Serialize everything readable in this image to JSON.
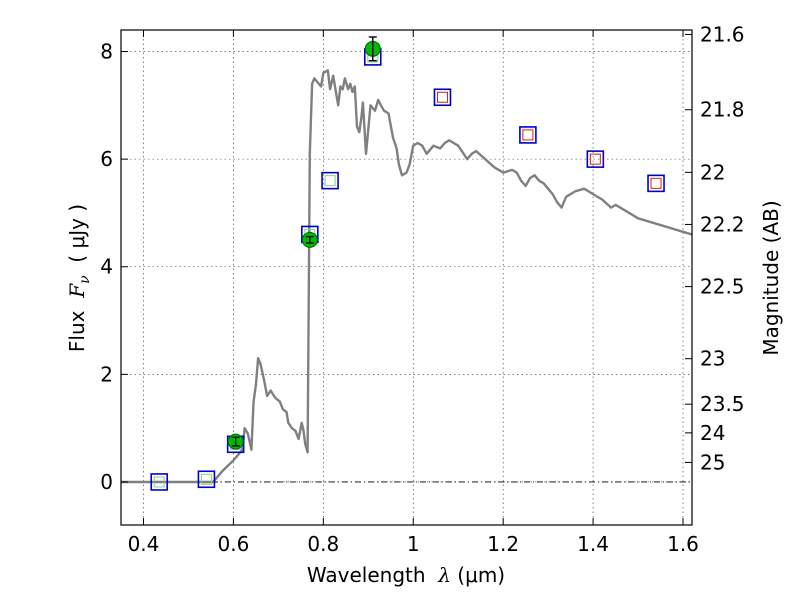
{
  "chart_data": {
    "type": "scatter",
    "xlabel": {
      "pre": "Wavelength  ",
      "sym": "λ",
      "unit": " (μm)"
    },
    "ylabel": {
      "pre": "Flux  ",
      "sym": "F",
      "sub": "ν",
      "unit": "  ( μJy )"
    },
    "y2label": "Magnitude (AB)",
    "xlim": [
      0.35,
      1.62
    ],
    "ylim": [
      -0.8,
      8.4
    ],
    "grid": true,
    "x_ticks": [
      {
        "value": 0.4,
        "label": "0.4"
      },
      {
        "value": 0.6,
        "label": "0.6"
      },
      {
        "value": 0.8,
        "label": "0.8"
      },
      {
        "value": 1.0,
        "label": "1"
      },
      {
        "value": 1.2,
        "label": "1.2"
      },
      {
        "value": 1.4,
        "label": "1.4"
      },
      {
        "value": 1.6,
        "label": "1.6"
      }
    ],
    "y_ticks": [
      {
        "value": 0,
        "label": "0"
      },
      {
        "value": 2,
        "label": "2"
      },
      {
        "value": 4,
        "label": "4"
      },
      {
        "value": 6,
        "label": "6"
      },
      {
        "value": 8,
        "label": "8"
      }
    ],
    "y2_ticks": [
      {
        "label": "21.6"
      },
      {
        "label": "21.8"
      },
      {
        "label": "22"
      },
      {
        "label": "22.2"
      },
      {
        "label": "22.5"
      },
      {
        "label": "23"
      },
      {
        "label": "23.5"
      },
      {
        "label": "24"
      },
      {
        "label": "25"
      }
    ],
    "series": [
      {
        "name": "model-spectrum",
        "kind": "line",
        "color": "#808080",
        "x": [
          0.35,
          0.555,
          0.575,
          0.6,
          0.61,
          0.62,
          0.625,
          0.632,
          0.64,
          0.645,
          0.65,
          0.655,
          0.66,
          0.668,
          0.675,
          0.683,
          0.69,
          0.695,
          0.703,
          0.71,
          0.718,
          0.722,
          0.73,
          0.738,
          0.745,
          0.752,
          0.756,
          0.76,
          0.765,
          0.77,
          0.775,
          0.78,
          0.785,
          0.79,
          0.795,
          0.8,
          0.81,
          0.815,
          0.822,
          0.828,
          0.833,
          0.838,
          0.843,
          0.848,
          0.855,
          0.86,
          0.865,
          0.87,
          0.875,
          0.88,
          0.885,
          0.888,
          0.895,
          0.905,
          0.915,
          0.922,
          0.928,
          0.935,
          0.945,
          0.955,
          0.963,
          0.968,
          0.975,
          0.985,
          0.992,
          1.0,
          1.01,
          1.02,
          1.03,
          1.045,
          1.06,
          1.07,
          1.08,
          1.09,
          1.1,
          1.12,
          1.13,
          1.14,
          1.16,
          1.18,
          1.2,
          1.22,
          1.23,
          1.24,
          1.25,
          1.26,
          1.27,
          1.28,
          1.29,
          1.3,
          1.31,
          1.32,
          1.33,
          1.34,
          1.36,
          1.38,
          1.39,
          1.4,
          1.42,
          1.44,
          1.45,
          1.47,
          1.49,
          1.5,
          1.52,
          1.54,
          1.56,
          1.58,
          1.6,
          1.62
        ],
        "y": [
          0.0,
          0.0,
          0.2,
          0.4,
          0.5,
          0.6,
          1.0,
          0.9,
          0.6,
          1.5,
          1.8,
          2.3,
          2.2,
          1.9,
          1.6,
          1.7,
          1.6,
          1.55,
          1.5,
          1.35,
          1.3,
          1.1,
          1.0,
          0.95,
          0.8,
          1.1,
          0.95,
          0.7,
          0.55,
          6.1,
          7.4,
          7.5,
          7.45,
          7.4,
          7.35,
          7.6,
          7.65,
          7.3,
          7.55,
          7.25,
          7.0,
          7.35,
          7.3,
          7.5,
          7.3,
          7.4,
          7.25,
          7.35,
          6.6,
          6.5,
          6.8,
          7.05,
          6.1,
          7.0,
          6.9,
          7.1,
          7.0,
          6.9,
          6.85,
          6.4,
          6.2,
          5.9,
          5.7,
          5.75,
          5.9,
          6.25,
          6.3,
          6.25,
          6.1,
          6.25,
          6.2,
          6.3,
          6.35,
          6.3,
          6.25,
          6.0,
          6.1,
          6.15,
          6.0,
          5.85,
          5.75,
          5.8,
          5.75,
          5.6,
          5.5,
          5.65,
          5.7,
          5.6,
          5.55,
          5.45,
          5.35,
          5.2,
          5.1,
          5.3,
          5.4,
          5.45,
          5.4,
          5.35,
          5.25,
          5.1,
          5.15,
          5.05,
          4.95,
          4.9,
          4.85,
          4.8,
          4.75,
          4.7,
          4.65,
          4.6
        ]
      },
      {
        "name": "model-photometry",
        "kind": "open-square",
        "edge_color": "#0000cc",
        "x": [
          0.435,
          0.54,
          0.605,
          0.77,
          0.815,
          0.91,
          1.065,
          1.255,
          1.405,
          1.54
        ],
        "y": [
          0.0,
          0.05,
          0.7,
          4.6,
          5.6,
          7.9,
          7.15,
          6.45,
          6.0,
          5.55
        ]
      },
      {
        "name": "bandpass-markers",
        "kind": "inner-square",
        "colors": [
          "#88cc88",
          "#88cc88",
          "#88cc88",
          "#88cc88",
          "#88cc88",
          "#88cc88",
          "#cc2222",
          "#cc2222",
          "#cc2222",
          "#cc2222"
        ],
        "x": [
          0.435,
          0.54,
          0.605,
          0.77,
          0.815,
          0.91,
          1.065,
          1.255,
          1.405,
          1.54
        ],
        "y": [
          0.0,
          0.05,
          0.7,
          4.6,
          5.6,
          7.9,
          7.15,
          6.45,
          6.0,
          5.55
        ]
      },
      {
        "name": "observed-flux",
        "kind": "point-errorbar",
        "color": "#00bb00",
        "x": [
          0.605,
          0.77,
          0.91
        ],
        "y": [
          0.75,
          4.5,
          8.05
        ],
        "yerr": [
          0.08,
          0.06,
          0.22
        ]
      }
    ]
  }
}
